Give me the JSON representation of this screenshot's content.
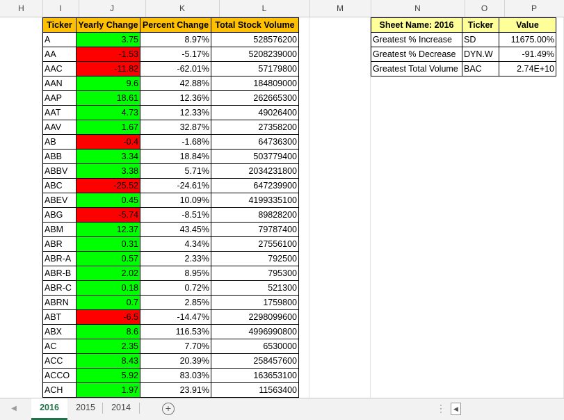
{
  "columns": [
    "H",
    "I",
    "J",
    "K",
    "L",
    "M",
    "N",
    "O",
    "P"
  ],
  "main_headers": [
    "Ticker",
    "Yearly Change",
    "Percent Change",
    "Total Stock Volume"
  ],
  "rows": [
    {
      "ticker": "A",
      "change": "3.75",
      "pct": "8.97%",
      "vol": "528576200",
      "sign": "pos"
    },
    {
      "ticker": "AA",
      "change": "-1.53",
      "pct": "-5.17%",
      "vol": "5208239000",
      "sign": "neg"
    },
    {
      "ticker": "AAC",
      "change": "-11.82",
      "pct": "-62.01%",
      "vol": "57179800",
      "sign": "neg"
    },
    {
      "ticker": "AAN",
      "change": "9.6",
      "pct": "42.88%",
      "vol": "184809000",
      "sign": "pos"
    },
    {
      "ticker": "AAP",
      "change": "18.61",
      "pct": "12.36%",
      "vol": "262665300",
      "sign": "pos"
    },
    {
      "ticker": "AAT",
      "change": "4.73",
      "pct": "12.33%",
      "vol": "49026400",
      "sign": "pos"
    },
    {
      "ticker": "AAV",
      "change": "1.67",
      "pct": "32.87%",
      "vol": "27358200",
      "sign": "pos"
    },
    {
      "ticker": "AB",
      "change": "-0.4",
      "pct": "-1.68%",
      "vol": "64736300",
      "sign": "neg"
    },
    {
      "ticker": "ABB",
      "change": "3.34",
      "pct": "18.84%",
      "vol": "503779400",
      "sign": "pos"
    },
    {
      "ticker": "ABBV",
      "change": "3.38",
      "pct": "5.71%",
      "vol": "2034231800",
      "sign": "pos"
    },
    {
      "ticker": "ABC",
      "change": "-25.52",
      "pct": "-24.61%",
      "vol": "647239900",
      "sign": "neg"
    },
    {
      "ticker": "ABEV",
      "change": "0.45",
      "pct": "10.09%",
      "vol": "4199335100",
      "sign": "pos"
    },
    {
      "ticker": "ABG",
      "change": "-5.74",
      "pct": "-8.51%",
      "vol": "89828200",
      "sign": "neg"
    },
    {
      "ticker": "ABM",
      "change": "12.37",
      "pct": "43.45%",
      "vol": "79787400",
      "sign": "pos"
    },
    {
      "ticker": "ABR",
      "change": "0.31",
      "pct": "4.34%",
      "vol": "27556100",
      "sign": "pos"
    },
    {
      "ticker": "ABR-A",
      "change": "0.57",
      "pct": "2.33%",
      "vol": "792500",
      "sign": "pos"
    },
    {
      "ticker": "ABR-B",
      "change": "2.02",
      "pct": "8.95%",
      "vol": "795300",
      "sign": "pos"
    },
    {
      "ticker": "ABR-C",
      "change": "0.18",
      "pct": "0.72%",
      "vol": "521300",
      "sign": "pos"
    },
    {
      "ticker": "ABRN",
      "change": "0.7",
      "pct": "2.85%",
      "vol": "1759800",
      "sign": "pos"
    },
    {
      "ticker": "ABT",
      "change": "-6.5",
      "pct": "-14.47%",
      "vol": "2298099600",
      "sign": "neg"
    },
    {
      "ticker": "ABX",
      "change": "8.6",
      "pct": "116.53%",
      "vol": "4996990800",
      "sign": "pos"
    },
    {
      "ticker": "AC",
      "change": "2.35",
      "pct": "7.70%",
      "vol": "6530000",
      "sign": "pos"
    },
    {
      "ticker": "ACC",
      "change": "8.43",
      "pct": "20.39%",
      "vol": "258457600",
      "sign": "pos"
    },
    {
      "ticker": "ACCO",
      "change": "5.92",
      "pct": "83.03%",
      "vol": "163653100",
      "sign": "pos"
    },
    {
      "ticker": "ACH",
      "change": "1.97",
      "pct": "23.91%",
      "vol": "11563400",
      "sign": "pos"
    }
  ],
  "summary": {
    "headers": [
      "Sheet Name: 2016",
      "Ticker",
      "Value"
    ],
    "rows": [
      {
        "label": "Greatest % Increase",
        "ticker": "SD",
        "value": "11675.00%"
      },
      {
        "label": "Greatest % Decrease",
        "ticker": "DYN.W",
        "value": "-91.49%"
      },
      {
        "label": "Greatest Total Volume",
        "ticker": "BAC",
        "value": "2.74E+10"
      }
    ]
  },
  "tabs": [
    "2016",
    "2015",
    "2014"
  ],
  "active_tab": "2016",
  "colors": {
    "positive": "#00ff00",
    "negative": "#ff0000",
    "header": "#ffc000",
    "summary_header": "#ffff99",
    "active_tab": "#217346"
  }
}
